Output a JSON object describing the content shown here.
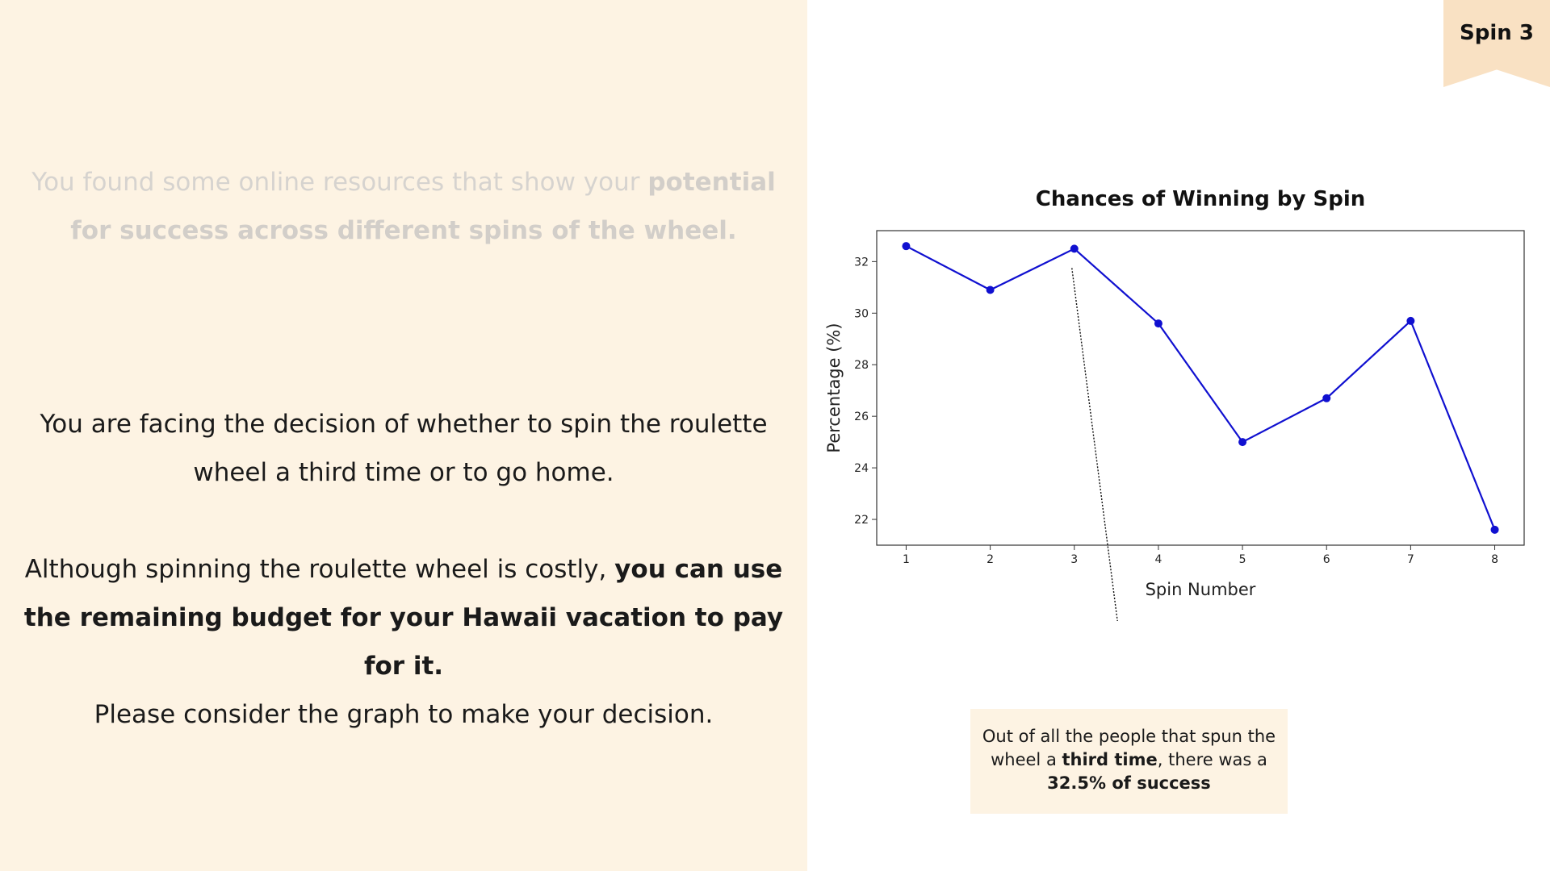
{
  "badge": {
    "label": "Spin 3"
  },
  "intro": {
    "normal": "You found some online resources that show your ",
    "bold": "potential for success across different spins of the wheel."
  },
  "decision": {
    "text": "You are facing the decision of whether to spin the roulette wheel a third time or to go home."
  },
  "budget": {
    "normal": "Although spinning the roulette wheel is costly, ",
    "bold": "you can use the remaining budget for your Hawaii vacation to pay for it."
  },
  "consider": {
    "text": "Please consider the graph to make your decision."
  },
  "callout": {
    "part1": "Out of all the people that spun the wheel a ",
    "bold1": "third time",
    "part2": ", there was a ",
    "bold2": "32.5% of success"
  },
  "colors": {
    "line": "#1010d0",
    "panel": "#fdf3e3",
    "badge": "#f9e1c3"
  },
  "chart_data": {
    "type": "line",
    "title": "Chances of Winning by Spin",
    "xlabel": "Spin Number",
    "ylabel": "Percentage (%)",
    "x": [
      1,
      2,
      3,
      4,
      5,
      6,
      7,
      8
    ],
    "series": [
      {
        "values": [
          32.6,
          30.9,
          32.5,
          29.6,
          25.0,
          26.7,
          29.7,
          21.6
        ]
      }
    ],
    "xlim": [
      0.65,
      8.35
    ],
    "ylim": [
      21.0,
      33.2
    ],
    "xticks": [
      1,
      2,
      3,
      4,
      5,
      6,
      7,
      8
    ],
    "yticks": [
      22,
      24,
      26,
      28,
      30,
      32
    ],
    "grid": false,
    "legend": "none",
    "annotation": {
      "x": 3,
      "y": 32.5
    }
  }
}
